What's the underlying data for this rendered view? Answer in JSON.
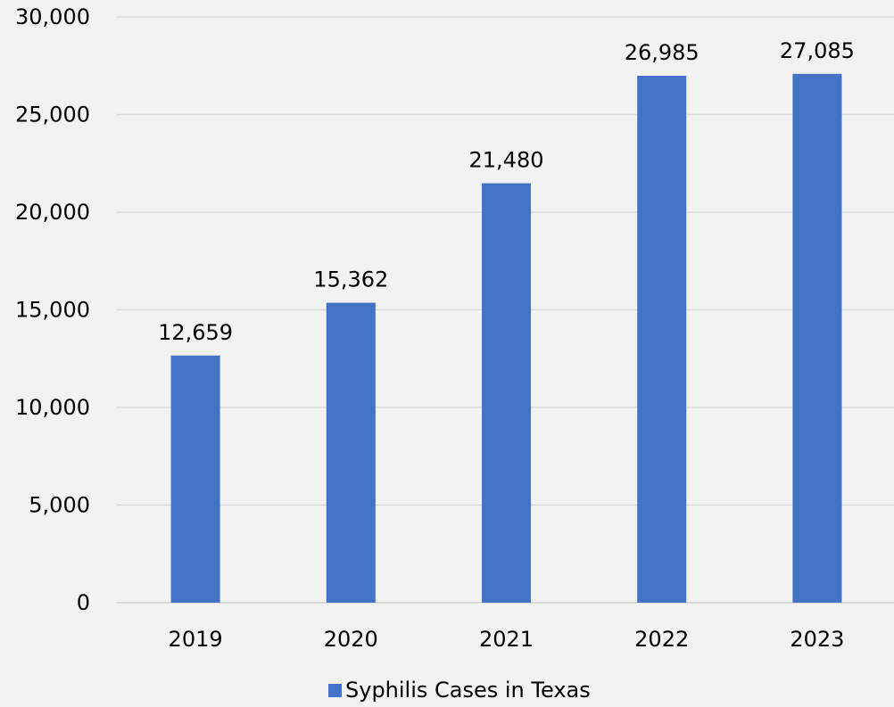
{
  "chart_data": {
    "type": "bar",
    "categories": [
      "2019",
      "2020",
      "2021",
      "2022",
      "2023"
    ],
    "series": [
      {
        "name": "Syphilis Cases in Texas",
        "values": [
          12659,
          15362,
          21480,
          26985,
          27085
        ],
        "labels": [
          "12,659",
          "15,362",
          "21,480",
          "26,985",
          "27,085"
        ],
        "color": "#4472c4"
      }
    ],
    "ylim": [
      0,
      30000
    ],
    "yticks": [
      0,
      5000,
      10000,
      15000,
      20000,
      25000,
      30000
    ],
    "ytick_labels": [
      "0",
      "5,000",
      "10,000",
      "15,000",
      "20,000",
      "25,000",
      "30,000"
    ],
    "grid": true,
    "legend": "bottom-center"
  },
  "colors": {
    "background": "#f2f2f2",
    "gridline": "#d9d9d9",
    "bar": "#4472c4"
  }
}
